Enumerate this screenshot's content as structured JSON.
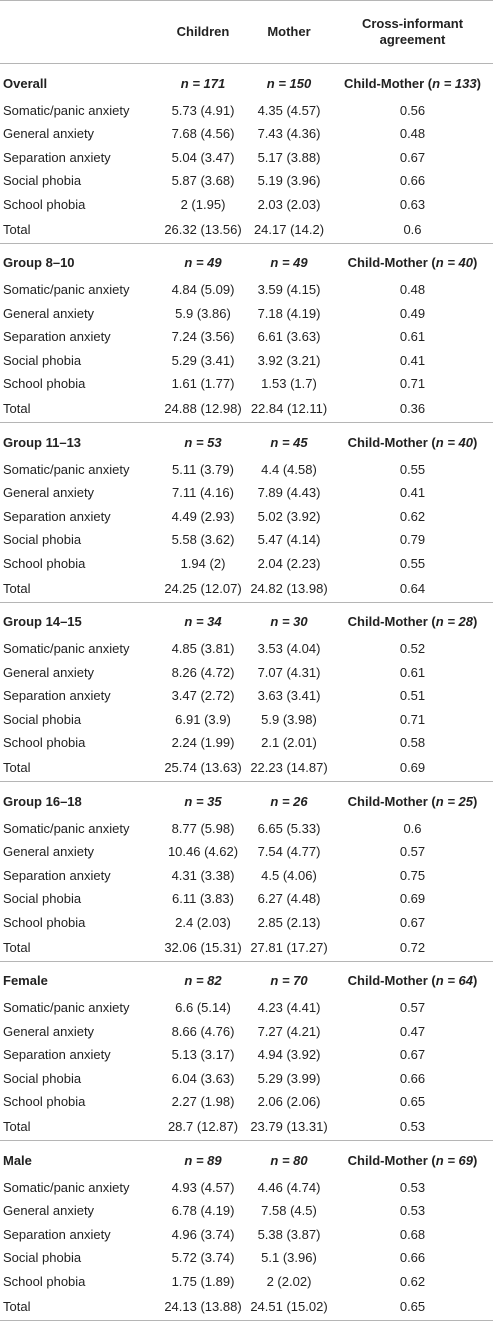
{
  "header": {
    "col0": "",
    "col1": "Children",
    "col2": "Mother",
    "col3_line1": "Cross-informant",
    "col3_line2": "agreement"
  },
  "groups": [
    {
      "title": "Overall",
      "n_children": "n = 171",
      "n_mother": "n = 150",
      "agreement_prefix": "Child-Mother (",
      "agreement_n": "n = 133",
      "agreement_suffix": ")",
      "rows": [
        {
          "label": "Somatic/panic anxiety",
          "children": "5.73 (4.91)",
          "mother": "4.35 (4.57)",
          "agreement": "0.56"
        },
        {
          "label": "General anxiety",
          "children": "7.68 (4.56)",
          "mother": "7.43 (4.36)",
          "agreement": "0.48"
        },
        {
          "label": "Separation anxiety",
          "children": "5.04 (3.47)",
          "mother": "5.17 (3.88)",
          "agreement": "0.67"
        },
        {
          "label": "Social phobia",
          "children": "5.87 (3.68)",
          "mother": "5.19 (3.96)",
          "agreement": "0.66"
        },
        {
          "label": "School phobia",
          "children": "2 (1.95)",
          "mother": "2.03 (2.03)",
          "agreement": "0.63"
        },
        {
          "label": "Total",
          "children": "26.32 (13.56)",
          "mother": "24.17 (14.2)",
          "agreement": "0.6"
        }
      ]
    },
    {
      "title": "Group 8–10",
      "n_children": "n = 49",
      "n_mother": "n = 49",
      "agreement_prefix": "Child-Mother (",
      "agreement_n": "n = 40",
      "agreement_suffix": ")",
      "rows": [
        {
          "label": "Somatic/panic anxiety",
          "children": "4.84 (5.09)",
          "mother": "3.59 (4.15)",
          "agreement": "0.48"
        },
        {
          "label": "General anxiety",
          "children": "5.9 (3.86)",
          "mother": "7.18 (4.19)",
          "agreement": "0.49"
        },
        {
          "label": "Separation anxiety",
          "children": "7.24 (3.56)",
          "mother": "6.61 (3.63)",
          "agreement": "0.61"
        },
        {
          "label": "Social phobia",
          "children": "5.29 (3.41)",
          "mother": "3.92 (3.21)",
          "agreement": "0.41"
        },
        {
          "label": "School phobia",
          "children": "1.61 (1.77)",
          "mother": "1.53 (1.7)",
          "agreement": "0.71"
        },
        {
          "label": "Total",
          "children": "24.88 (12.98)",
          "mother": "22.84 (12.11)",
          "agreement": "0.36"
        }
      ]
    },
    {
      "title": "Group 11–13",
      "n_children": "n = 53",
      "n_mother": "n = 45",
      "agreement_prefix": "Child-Mother (",
      "agreement_n": "n = 40",
      "agreement_suffix": ")",
      "rows": [
        {
          "label": "Somatic/panic anxiety",
          "children": "5.11 (3.79)",
          "mother": "4.4 (4.58)",
          "agreement": "0.55"
        },
        {
          "label": "General anxiety",
          "children": "7.11 (4.16)",
          "mother": "7.89 (4.43)",
          "agreement": "0.41"
        },
        {
          "label": "Separation anxiety",
          "children": "4.49 (2.93)",
          "mother": "5.02 (3.92)",
          "agreement": "0.62"
        },
        {
          "label": "Social phobia",
          "children": "5.58 (3.62)",
          "mother": "5.47 (4.14)",
          "agreement": "0.79"
        },
        {
          "label": "School phobia",
          "children": "1.94 (2)",
          "mother": "2.04 (2.23)",
          "agreement": "0.55"
        },
        {
          "label": "Total",
          "children": "24.25 (12.07)",
          "mother": "24.82 (13.98)",
          "agreement": "0.64"
        }
      ]
    },
    {
      "title": "Group 14–15",
      "n_children": "n = 34",
      "n_mother": "n = 30",
      "agreement_prefix": "Child-Mother (",
      "agreement_n": "n = 28",
      "agreement_suffix": ")",
      "rows": [
        {
          "label": "Somatic/panic anxiety",
          "children": "4.85 (3.81)",
          "mother": "3.53 (4.04)",
          "agreement": "0.52"
        },
        {
          "label": "General anxiety",
          "children": "8.26 (4.72)",
          "mother": "7.07 (4.31)",
          "agreement": "0.61"
        },
        {
          "label": "Separation anxiety",
          "children": "3.47 (2.72)",
          "mother": "3.63 (3.41)",
          "agreement": "0.51"
        },
        {
          "label": "Social phobia",
          "children": "6.91 (3.9)",
          "mother": "5.9 (3.98)",
          "agreement": "0.71"
        },
        {
          "label": "School phobia",
          "children": "2.24 (1.99)",
          "mother": "2.1 (2.01)",
          "agreement": "0.58"
        },
        {
          "label": "Total",
          "children": "25.74 (13.63)",
          "mother": "22.23 (14.87)",
          "agreement": "0.69"
        }
      ]
    },
    {
      "title": "Group 16–18",
      "n_children": "n = 35",
      "n_mother": "n = 26",
      "agreement_prefix": "Child-Mother (",
      "agreement_n": "n = 25",
      "agreement_suffix": ")",
      "rows": [
        {
          "label": "Somatic/panic anxiety",
          "children": "8.77 (5.98)",
          "mother": "6.65 (5.33)",
          "agreement": "0.6"
        },
        {
          "label": "General anxiety",
          "children": "10.46 (4.62)",
          "mother": "7.54 (4.77)",
          "agreement": "0.57"
        },
        {
          "label": "Separation anxiety",
          "children": "4.31 (3.38)",
          "mother": "4.5 (4.06)",
          "agreement": "0.75"
        },
        {
          "label": "Social phobia",
          "children": "6.11 (3.83)",
          "mother": "6.27 (4.48)",
          "agreement": "0.69"
        },
        {
          "label": "School phobia",
          "children": "2.4 (2.03)",
          "mother": "2.85 (2.13)",
          "agreement": "0.67"
        },
        {
          "label": "Total",
          "children": "32.06 (15.31)",
          "mother": "27.81 (17.27)",
          "agreement": "0.72"
        }
      ]
    },
    {
      "title": "Female",
      "n_children": "n = 82",
      "n_mother": "n = 70",
      "agreement_prefix": "Child-Mother (",
      "agreement_n": "n = 64",
      "agreement_suffix": ")",
      "rows": [
        {
          "label": "Somatic/panic anxiety",
          "children": "6.6 (5.14)",
          "mother": "4.23 (4.41)",
          "agreement": "0.57"
        },
        {
          "label": "General anxiety",
          "children": "8.66 (4.76)",
          "mother": "7.27 (4.21)",
          "agreement": "0.47"
        },
        {
          "label": "Separation anxiety",
          "children": "5.13 (3.17)",
          "mother": "4.94 (3.92)",
          "agreement": "0.67"
        },
        {
          "label": "Social phobia",
          "children": "6.04 (3.63)",
          "mother": "5.29 (3.99)",
          "agreement": "0.66"
        },
        {
          "label": "School phobia",
          "children": "2.27 (1.98)",
          "mother": "2.06 (2.06)",
          "agreement": "0.65"
        },
        {
          "label": "Total",
          "children": "28.7 (12.87)",
          "mother": "23.79 (13.31)",
          "agreement": "0.53"
        }
      ]
    },
    {
      "title": "Male",
      "n_children": "n = 89",
      "n_mother": "n = 80",
      "agreement_prefix": "Child-Mother (",
      "agreement_n": "n = 69",
      "agreement_suffix": ")",
      "rows": [
        {
          "label": "Somatic/panic anxiety",
          "children": "4.93 (4.57)",
          "mother": "4.46 (4.74)",
          "agreement": "0.53"
        },
        {
          "label": "General anxiety",
          "children": "6.78 (4.19)",
          "mother": "7.58 (4.5)",
          "agreement": "0.53"
        },
        {
          "label": "Separation anxiety",
          "children": "4.96 (3.74)",
          "mother": "5.38 (3.87)",
          "agreement": "0.68"
        },
        {
          "label": "Social phobia",
          "children": "5.72 (3.74)",
          "mother": "5.1 (3.96)",
          "agreement": "0.66"
        },
        {
          "label": "School phobia",
          "children": "1.75 (1.89)",
          "mother": "2 (2.02)",
          "agreement": "0.62"
        },
        {
          "label": "Total",
          "children": "24.13 (13.88)",
          "mother": "24.51 (15.02)",
          "agreement": "0.65"
        }
      ]
    }
  ]
}
